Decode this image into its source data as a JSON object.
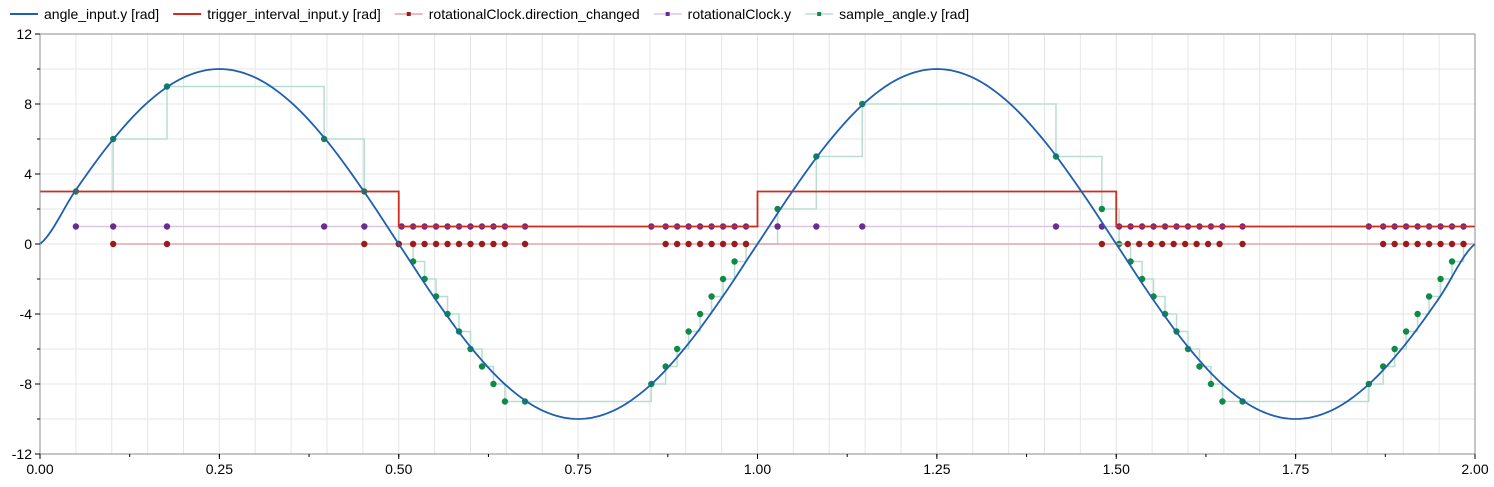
{
  "chart_data": {
    "type": "line",
    "title": "",
    "xlabel": "",
    "ylabel": "",
    "xlim": [
      0,
      2
    ],
    "ylim": [
      -12,
      12
    ],
    "grid": true,
    "legend_position": "top",
    "x_ticks": [
      "0.00",
      "0.25",
      "0.50",
      "0.75",
      "1.00",
      "1.25",
      "1.50",
      "1.75",
      "2.00"
    ],
    "y_ticks": [
      "12",
      "8",
      "4",
      "0",
      "-4",
      "-8",
      "-12"
    ],
    "x_tick_values": [
      0,
      0.25,
      0.5,
      0.75,
      1.0,
      1.25,
      1.5,
      1.75,
      2.0
    ],
    "y_tick_values": [
      12,
      8,
      4,
      0,
      -4,
      -8,
      -12
    ],
    "series": [
      {
        "name": "angle_input.y [rad]",
        "color": "#1f5fb0",
        "kind": "line",
        "x": [
          0,
          0.05,
          0.1,
          0.15,
          0.2,
          0.25,
          0.3,
          0.35,
          0.4,
          0.45,
          0.5,
          0.55,
          0.6,
          0.65,
          0.7,
          0.75,
          0.8,
          0.85,
          0.9,
          0.95,
          1.0,
          1.05,
          1.1,
          1.15,
          1.2,
          1.25,
          1.3,
          1.35,
          1.4,
          1.45,
          1.5,
          1.55,
          1.6,
          1.65,
          1.7,
          1.75,
          1.8,
          1.85,
          1.9,
          1.95,
          2.0
        ],
        "y": [
          0,
          3.09,
          5.88,
          8.09,
          9.51,
          10,
          9.51,
          8.09,
          5.88,
          3.09,
          0,
          -3.09,
          -5.88,
          -8.09,
          -9.51,
          -10,
          -9.51,
          -8.09,
          -5.88,
          -3.09,
          0,
          3.09,
          5.88,
          8.09,
          9.51,
          10,
          9.51,
          8.09,
          5.88,
          3.09,
          0,
          -3.09,
          -5.88,
          -8.09,
          -9.51,
          -10,
          -9.51,
          -8.09,
          -5.88,
          -3.09,
          0
        ]
      },
      {
        "name": "trigger_interval_input.y [rad]",
        "color": "#d42a1e",
        "kind": "step",
        "x": [
          0,
          0.5,
          0.5,
          1.0,
          1.0,
          1.5,
          1.5,
          2.0
        ],
        "y": [
          3,
          3,
          1,
          1,
          3,
          3,
          1,
          1
        ]
      },
      {
        "name": "rotationalClock.direction_changed",
        "color": "#9b1b1b",
        "line_color": "#e6a5a5",
        "kind": "step-markers",
        "x": [
          0.102,
          0.177,
          0.452,
          0.5,
          0.52,
          0.536,
          0.552,
          0.568,
          0.584,
          0.6,
          0.616,
          0.632,
          0.648,
          0.676,
          0.872,
          0.888,
          0.904,
          0.92,
          0.936,
          0.952,
          0.968,
          0.984,
          1.48,
          1.516,
          1.532,
          1.548,
          1.564,
          1.58,
          1.596,
          1.612,
          1.628,
          1.644,
          1.676,
          1.872,
          1.888,
          1.904,
          1.92,
          1.936,
          1.952,
          1.968,
          1.984
        ],
        "y": [
          0,
          0,
          0,
          0,
          0,
          0,
          0,
          0,
          0,
          0,
          0,
          0,
          0,
          0,
          0,
          0,
          0,
          0,
          0,
          0,
          0,
          0,
          0,
          0,
          0,
          0,
          0,
          0,
          0,
          0,
          0,
          0,
          0,
          0,
          0,
          0,
          0,
          0,
          0,
          0,
          0
        ]
      },
      {
        "name": "rotationalClock.y",
        "color": "#6a2c8f",
        "line_color": "#dcc6e6",
        "kind": "step-markers",
        "x": [
          0.05,
          0.102,
          0.177,
          0.396,
          0.452,
          0.504,
          0.52,
          0.536,
          0.552,
          0.568,
          0.584,
          0.6,
          0.616,
          0.632,
          0.648,
          0.676,
          0.852,
          0.872,
          0.888,
          0.904,
          0.92,
          0.936,
          0.952,
          0.968,
          0.984,
          1.028,
          1.082,
          1.146,
          1.416,
          1.48,
          1.504,
          1.52,
          1.536,
          1.552,
          1.568,
          1.584,
          1.6,
          1.616,
          1.632,
          1.648,
          1.676,
          1.852,
          1.872,
          1.888,
          1.904,
          1.92,
          1.936,
          1.952,
          1.968,
          1.984
        ],
        "y": [
          1,
          1,
          1,
          1,
          1,
          1,
          1,
          1,
          1,
          1,
          1,
          1,
          1,
          1,
          1,
          1,
          1,
          1,
          1,
          1,
          1,
          1,
          1,
          1,
          1,
          1,
          1,
          1,
          1,
          1,
          1,
          1,
          1,
          1,
          1,
          1,
          1,
          1,
          1,
          1,
          1,
          1,
          1,
          1,
          1,
          1,
          1,
          1,
          1,
          1
        ]
      },
      {
        "name": "sample_angle.y [rad]",
        "color": "#0f8a45",
        "line_color": "#b9ddd4",
        "kind": "step-markers",
        "x": [
          0.05,
          0.102,
          0.177,
          0.396,
          0.452,
          0.5,
          0.52,
          0.536,
          0.552,
          0.568,
          0.584,
          0.6,
          0.616,
          0.632,
          0.648,
          0.676,
          0.852,
          0.872,
          0.888,
          0.904,
          0.92,
          0.936,
          0.952,
          0.968,
          0.984,
          1.028,
          1.082,
          1.146,
          1.416,
          1.48,
          1.504,
          1.52,
          1.536,
          1.552,
          1.568,
          1.584,
          1.6,
          1.616,
          1.632,
          1.648,
          1.676,
          1.852,
          1.872,
          1.888,
          1.904,
          1.92,
          1.936,
          1.952,
          1.968,
          1.984
        ],
        "y": [
          3,
          6,
          9,
          6,
          3,
          0,
          -1,
          -2,
          -3,
          -4,
          -5,
          -6,
          -7,
          -8,
          -9,
          -9,
          -8,
          -7,
          -6,
          -5,
          -4,
          -3,
          -2,
          -1,
          0,
          2,
          5,
          8,
          5,
          2,
          0,
          -1,
          -2,
          -3,
          -4,
          -5,
          -6,
          -7,
          -8,
          -9,
          -9,
          -8,
          -7,
          -6,
          -5,
          -4,
          -3,
          -2,
          -1,
          0
        ]
      }
    ]
  }
}
